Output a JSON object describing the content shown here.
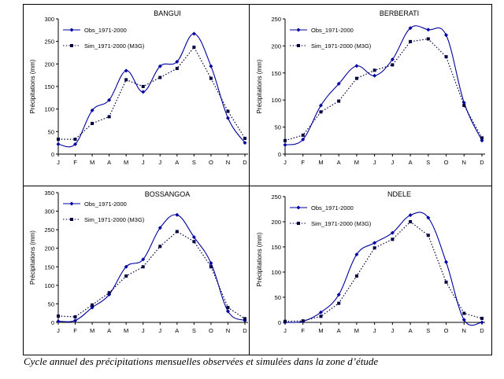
{
  "caption": "Cycle annuel des précipitations mensuelles observées et simulées dans la zone d’étude",
  "colors": {
    "obs": "#0000a0",
    "sim": "#000040",
    "frame": "#000000",
    "axis": "#000000"
  },
  "chart_data": [
    {
      "type": "line",
      "title": "BANGUI",
      "ylabel": "Précipitations (mm)",
      "xlabel": "",
      "ylim": [
        0,
        300
      ],
      "yticks": [
        0,
        50,
        100,
        150,
        200,
        250,
        300
      ],
      "categories": [
        "J",
        "F",
        "M",
        "A",
        "M",
        "J",
        "J",
        "A",
        "S",
        "O",
        "N",
        "D"
      ],
      "legend": "top-left",
      "grid": false,
      "series": [
        {
          "name": "Obs_1971-2000",
          "values": [
            22,
            22,
            97,
            120,
            185,
            138,
            195,
            205,
            267,
            195,
            80,
            25
          ]
        },
        {
          "name": "Sim_1971-2000 (M3G)",
          "values": [
            33,
            33,
            68,
            83,
            165,
            150,
            170,
            190,
            237,
            168,
            95,
            35
          ]
        }
      ]
    },
    {
      "type": "line",
      "title": "BERBERATI",
      "ylabel": "Précipitations (mm)",
      "xlabel": "",
      "ylim": [
        0,
        250
      ],
      "yticks": [
        0,
        50,
        100,
        150,
        200,
        250
      ],
      "categories": [
        "J",
        "F",
        "M",
        "A",
        "M",
        "J",
        "J",
        "A",
        "S",
        "O",
        "N",
        "D"
      ],
      "legend": "top-left",
      "grid": false,
      "series": [
        {
          "name": "Obs_1971-2000",
          "values": [
            17,
            27,
            90,
            130,
            163,
            145,
            175,
            233,
            230,
            220,
            95,
            25
          ]
        },
        {
          "name": "Sim_1971-2000 (M3G)",
          "values": [
            25,
            35,
            78,
            98,
            140,
            155,
            165,
            208,
            213,
            180,
            90,
            30
          ]
        }
      ]
    },
    {
      "type": "line",
      "title": "BOSSANGOA",
      "ylabel": "Précipitations (mm)",
      "xlabel": "",
      "ylim": [
        0,
        350
      ],
      "yticks": [
        0,
        50,
        100,
        150,
        200,
        250,
        300,
        350
      ],
      "categories": [
        "J",
        "F",
        "M",
        "A",
        "M",
        "J",
        "J",
        "A",
        "S",
        "O",
        "N",
        "D"
      ],
      "legend": "top-left",
      "grid": false,
      "series": [
        {
          "name": "Obs_1971-2000",
          "values": [
            3,
            5,
            40,
            75,
            150,
            170,
            255,
            290,
            230,
            160,
            30,
            5
          ]
        },
        {
          "name": "Sim_1971-2000 (M3G)",
          "values": [
            17,
            15,
            47,
            80,
            125,
            150,
            205,
            245,
            218,
            150,
            40,
            10
          ]
        }
      ]
    },
    {
      "type": "line",
      "title": "NDELE",
      "ylabel": "Précipitations (mm)",
      "xlabel": "",
      "ylim": [
        0,
        250
      ],
      "yticks": [
        0,
        50,
        100,
        150,
        200,
        250
      ],
      "categories": [
        "J",
        "F",
        "M",
        "A",
        "M",
        "J",
        "J",
        "A",
        "S",
        "O",
        "N",
        "D"
      ],
      "legend": "top-left",
      "grid": false,
      "series": [
        {
          "name": "Obs_1971-2000",
          "values": [
            0,
            2,
            20,
            55,
            135,
            158,
            178,
            213,
            208,
            120,
            5,
            0
          ]
        },
        {
          "name": "Sim_1971-2000 (M3G)",
          "values": [
            2,
            3,
            12,
            38,
            92,
            148,
            165,
            200,
            173,
            80,
            18,
            8
          ]
        }
      ]
    }
  ]
}
